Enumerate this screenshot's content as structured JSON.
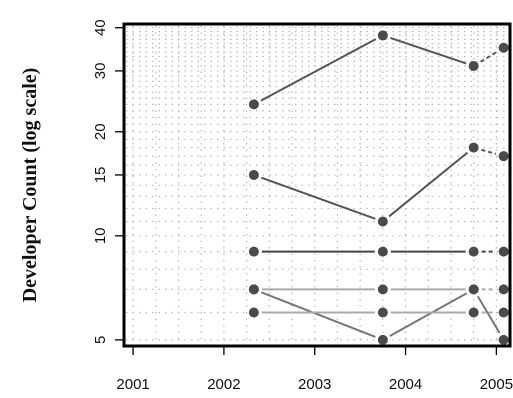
{
  "chart_data": {
    "type": "line",
    "title": "",
    "xlabel": "",
    "ylabel": "Developer Count (log scale)",
    "y_scale": "log",
    "grid": true,
    "xlim": [
      2000.9,
      2005.15
    ],
    "ylim": [
      4.8,
      41
    ],
    "x_ticks": [
      "2001",
      "2002",
      "2003",
      "2004",
      "2005"
    ],
    "y_ticks": [
      "5",
      "10",
      "15",
      "20",
      "30",
      "40"
    ],
    "x": [
      2002.33,
      2003.75,
      2004.75,
      2005.08
    ],
    "series": [
      {
        "values": [
          24,
          38,
          31,
          35
        ],
        "color": "#555555",
        "dash_last": true
      },
      {
        "values": [
          15,
          11,
          18,
          17
        ],
        "color": "#555555",
        "dash_last": true
      },
      {
        "values": [
          9,
          9,
          9,
          9
        ],
        "color": "#444444",
        "dash_last": true
      },
      {
        "values": [
          7,
          5,
          7,
          5
        ],
        "color": "#777777",
        "dash_last": false
      },
      {
        "values": [
          7,
          7,
          7,
          7
        ],
        "color": "#aaaaaa",
        "dash_last": true
      },
      {
        "values": [
          6,
          6,
          6,
          6
        ],
        "color": "#aaaaaa",
        "dash_last": true
      }
    ]
  }
}
